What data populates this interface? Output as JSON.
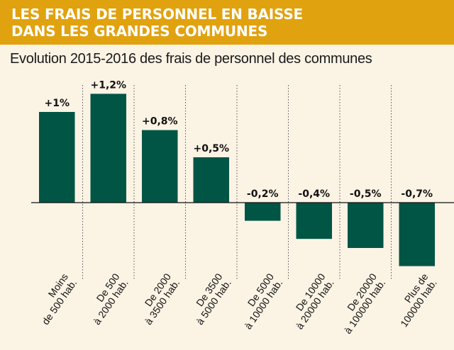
{
  "banner": {
    "title_line1": "LES FRAIS DE PERSONNEL EN BAISSE",
    "title_line2": "DANS LES GRANDES COMMUNES"
  },
  "colors": {
    "banner": "#e1a20f",
    "background": "#fbf3e4",
    "bar": "#005545"
  },
  "chart_data": {
    "type": "bar",
    "title": "Evolution 2015-2016 des frais de personnel des communes",
    "xlabel": "",
    "ylabel": "",
    "ylim": [
      -0.7,
      1.2
    ],
    "categories": [
      [
        "Moins",
        "de 500 hab."
      ],
      [
        "De 500",
        "à 2000 hab."
      ],
      [
        "De 2000",
        "à 3500 hab."
      ],
      [
        "De 3500",
        "à 5000 hab."
      ],
      [
        "De 5000",
        "à 10000 hab."
      ],
      [
        "De 10000",
        "à 20000 hab."
      ],
      [
        "De 20000",
        "à 100000 hab."
      ],
      [
        "Plus de",
        "100000 hab."
      ]
    ],
    "values": [
      1.0,
      1.2,
      0.8,
      0.5,
      -0.2,
      -0.4,
      -0.5,
      -0.7
    ],
    "data_labels": [
      "+1%",
      "+1,2%",
      "+0,8%",
      "+0,5%",
      "-0,2%",
      "-0,4%",
      "-0,5%",
      "-0,7%"
    ],
    "grid": false,
    "legend": "none"
  }
}
